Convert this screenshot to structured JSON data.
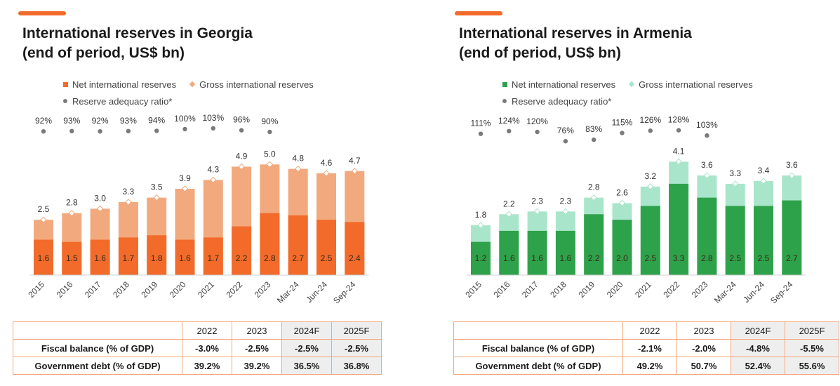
{
  "colors": {
    "georgia_net": "#f26b2a",
    "georgia_gross": "#f2a97e",
    "armenia_net": "#2ea24a",
    "armenia_gross": "#a9e5cb",
    "ratio_dot": "#7a7a7a",
    "accent": "#f26b2a",
    "table_border": "#f4a77a",
    "forecast_bg": "#eeeeee"
  },
  "legend": {
    "net": "Net international reserves",
    "gross": "Gross international reserves",
    "ratio": "Reserve adequacy ratio*"
  },
  "georgia": {
    "title": "International reserves in Georgia\n(end of period, US$ bn)",
    "table": {
      "headers": [
        "",
        "2022",
        "2023",
        "2024F",
        "2025F"
      ],
      "rows": [
        {
          "label": "Fiscal balance (% of GDP)",
          "values": [
            "-3.0%",
            "-2.5%",
            "-2.5%",
            "-2.5%"
          ]
        },
        {
          "label": "Government debt (% of GDP)",
          "values": [
            "39.2%",
            "39.2%",
            "36.5%",
            "36.8%"
          ]
        }
      ]
    }
  },
  "armenia": {
    "title": "International reserves in Armenia\n(end of period, US$ bn)",
    "table": {
      "headers": [
        "",
        "2022",
        "2023",
        "2024F",
        "2025F"
      ],
      "rows": [
        {
          "label": "Fiscal balance (% of GDP)",
          "values": [
            "-2.1%",
            "-2.0%",
            "-4.8%",
            "-5.5%"
          ]
        },
        {
          "label": "Government debt (% of GDP)",
          "values": [
            "49.2%",
            "50.7%",
            "52.4%",
            "55.6%"
          ]
        }
      ]
    }
  },
  "chart_data": [
    {
      "type": "bar",
      "categories": [
        "2015",
        "2016",
        "2017",
        "2018",
        "2019",
        "2020",
        "2021",
        "2022",
        "2023",
        "Mar-24",
        "Jun-24",
        "Sep-24"
      ],
      "series": [
        {
          "name": "Net international reserves",
          "values": [
            1.6,
            1.5,
            1.6,
            1.7,
            1.8,
            1.6,
            1.7,
            2.2,
            2.8,
            2.7,
            2.5,
            2.4
          ]
        },
        {
          "name": "Gross international reserves",
          "values": [
            2.5,
            2.8,
            3.0,
            3.3,
            3.5,
            3.9,
            4.3,
            4.9,
            5.0,
            4.8,
            4.6,
            4.7
          ]
        },
        {
          "name": "Reserve adequacy ratio*",
          "values": [
            "92%",
            "93%",
            "92%",
            "93%",
            "94%",
            "100%",
            "103%",
            "96%",
            "90%",
            null,
            null,
            null
          ]
        }
      ],
      "ylim": [
        0,
        6.5
      ]
    },
    {
      "type": "bar",
      "categories": [
        "2015",
        "2016",
        "2017",
        "2018",
        "2019",
        "2020",
        "2021",
        "2022",
        "2023",
        "Mar-24",
        "Jun-24",
        "Sep-24"
      ],
      "series": [
        {
          "name": "Net international reserves",
          "values": [
            1.2,
            1.6,
            1.6,
            1.6,
            2.2,
            2.0,
            2.5,
            3.3,
            2.8,
            2.5,
            2.5,
            2.7
          ]
        },
        {
          "name": "Gross international reserves",
          "values": [
            1.8,
            2.2,
            2.3,
            2.3,
            2.8,
            2.6,
            3.2,
            4.1,
            3.6,
            3.3,
            3.4,
            3.6
          ]
        },
        {
          "name": "Reserve adequacy ratio*",
          "values": [
            "111%",
            "124%",
            "120%",
            "76%",
            "83%",
            "115%",
            "126%",
            "128%",
            "103%",
            null,
            null,
            null
          ]
        }
      ],
      "ylim": [
        0,
        5.2
      ]
    }
  ]
}
